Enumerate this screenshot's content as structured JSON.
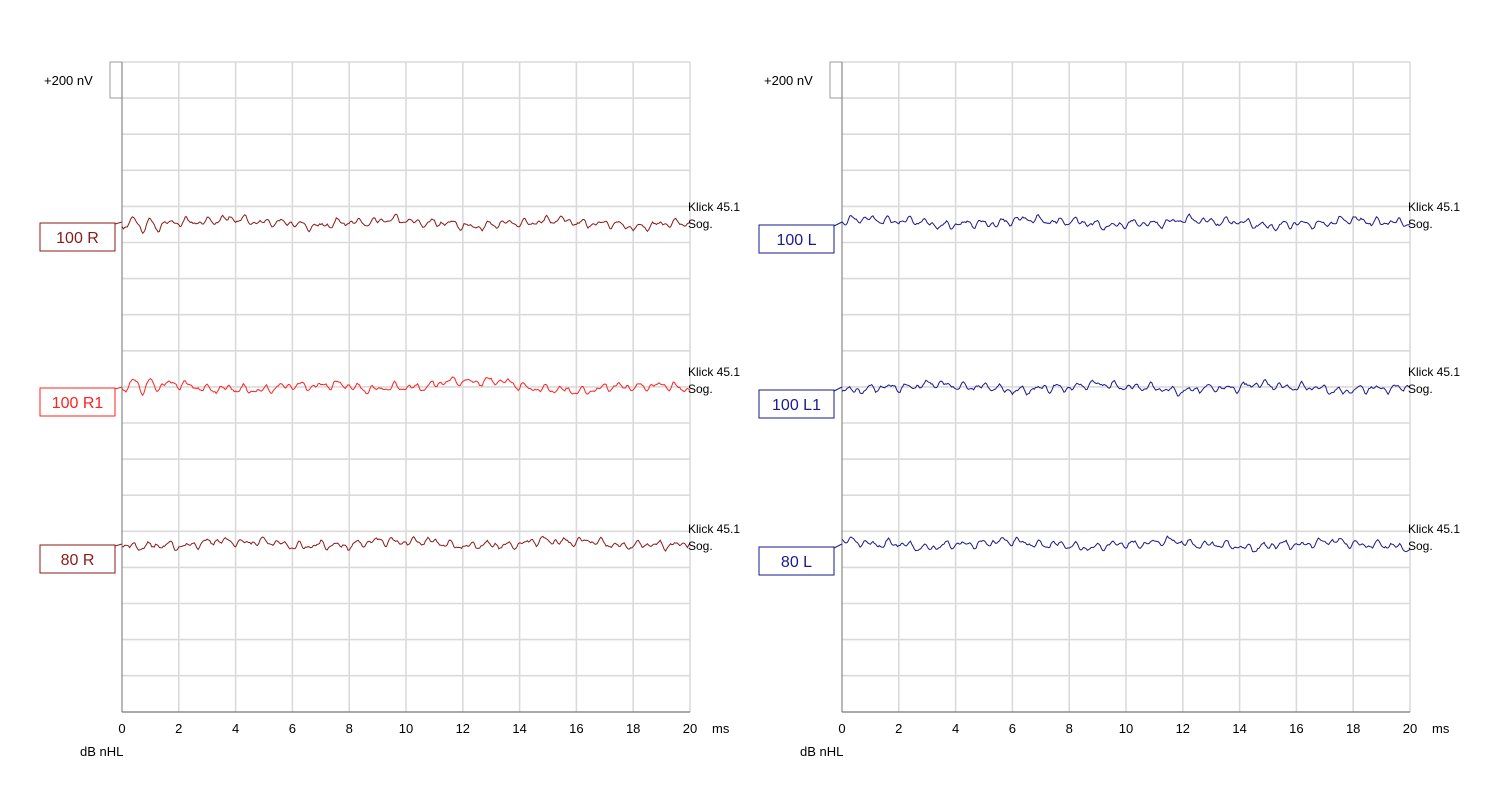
{
  "chart_data": [
    {
      "type": "line",
      "ear": "right",
      "scale_label": "+200 nV",
      "x_unit": "ms",
      "xlabel": "dB nHL",
      "xlim": [
        0,
        20
      ],
      "x_ticks": [
        0,
        2,
        4,
        6,
        8,
        10,
        12,
        14,
        16,
        18,
        20
      ],
      "grid": true,
      "series": [
        {
          "name": "100 R",
          "color": "#8b1a1a",
          "annotation": [
            "Klick 45.1",
            "Sog."
          ],
          "seed": 11,
          "early_ringing": true,
          "bump": false
        },
        {
          "name": "100 R1",
          "color": "#ff2020",
          "annotation": [
            "Klick 45.1",
            "Sog."
          ],
          "seed": 23,
          "early_ringing": true,
          "bump": true
        },
        {
          "name": "80 R",
          "color": "#8b1a1a",
          "annotation": [
            "Klick 45.1",
            "Sog."
          ],
          "seed": 37,
          "early_ringing": false,
          "bump": false
        }
      ]
    },
    {
      "type": "line",
      "ear": "left",
      "scale_label": "+200 nV",
      "x_unit": "ms",
      "xlabel": "dB nHL",
      "xlim": [
        0,
        20
      ],
      "x_ticks": [
        0,
        2,
        4,
        6,
        8,
        10,
        12,
        14,
        16,
        18,
        20
      ],
      "grid": true,
      "series": [
        {
          "name": "100 L",
          "color": "#1a1a8b",
          "annotation": [
            "Klick 45.1",
            "Sog."
          ],
          "seed": 51,
          "early_ringing": false,
          "bump": false
        },
        {
          "name": "100 L1",
          "color": "#1a1a8b",
          "annotation": [
            "Klick 45.1",
            "Sog."
          ],
          "seed": 67,
          "early_ringing": false,
          "bump": false
        },
        {
          "name": "80 L",
          "color": "#1a1a8b",
          "annotation": [
            "Klick 45.1",
            "Sog."
          ],
          "seed": 83,
          "early_ringing": false,
          "bump": false
        }
      ]
    }
  ]
}
